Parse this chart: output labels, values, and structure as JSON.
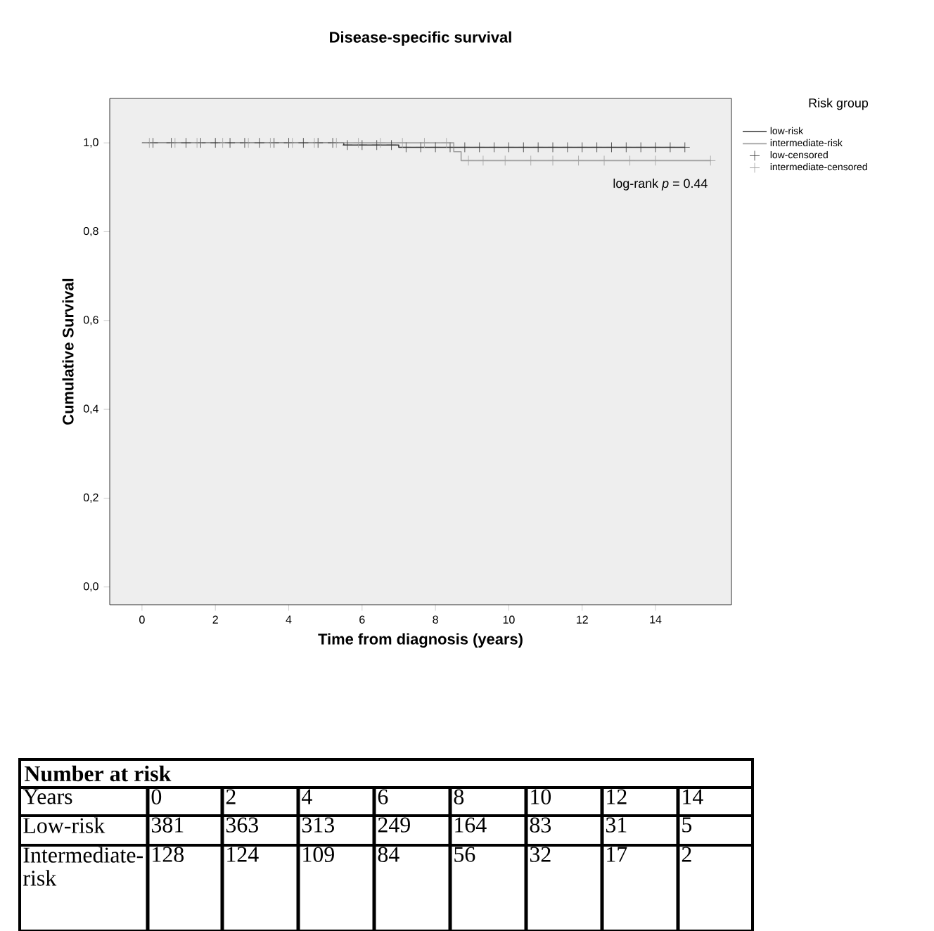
{
  "chart_data": {
    "type": "step",
    "title": "Disease-specific survival",
    "xlabel": "Time from diagnosis (years)",
    "ylabel": "Cumulative Survival",
    "legend_title": "Risk group",
    "legend": "top right",
    "annotations": [
      "log-rank *p* = 0.44",
      "Number at risk",
      "Years",
      "0",
      "2",
      "4",
      "6",
      "8",
      "10",
      "12",
      "14",
      "Low-risk",
      "381",
      "363",
      "313",
      "249",
      "164",
      "83",
      "31",
      "5",
      "Intermediate-risk",
      "128",
      "124",
      "109",
      "84",
      "56",
      "32",
      "17",
      "2"
    ],
    "xlim": [
      -0.88,
      16.07
    ],
    "ylim": [
      -0.04,
      1.1
    ],
    "xticks": [
      0,
      2,
      4,
      6,
      8,
      10,
      12,
      14
    ],
    "yticks": [
      {
        "value": 0.0,
        "label": "0,0"
      },
      {
        "value": 0.2,
        "label": "0,2"
      },
      {
        "value": 0.4,
        "label": "0,4"
      },
      {
        "value": 0.6,
        "label": "0,6"
      },
      {
        "value": 0.8,
        "label": "0,8"
      },
      {
        "value": 1.0,
        "label": "1,0"
      }
    ],
    "series": [
      {
        "name": "low-risk",
        "color": "#333333",
        "x": [
          0,
          5.5,
          7.0,
          14.8
        ],
        "values": [
          1.0,
          0.995,
          0.99,
          0.99
        ]
      },
      {
        "name": "intermediate-risk",
        "color": "#a0a0a0",
        "x": [
          0,
          8.5,
          8.7,
          15.5
        ],
        "values": [
          1.0,
          0.98,
          0.96,
          0.96
        ]
      },
      {
        "name": "low-censored",
        "type": "scatter",
        "marker": "cross",
        "color": "#333333",
        "x": [
          0.3,
          0.8,
          1.2,
          1.6,
          2.0,
          2.4,
          2.8,
          3.2,
          3.6,
          4.0,
          4.4,
          4.8,
          5.2,
          5.6,
          6.0,
          6.4,
          6.8,
          7.2,
          7.6,
          8.0,
          8.4,
          8.8,
          9.2,
          9.6,
          10.0,
          10.4,
          10.8,
          11.2,
          11.6,
          12.0,
          12.4,
          12.8,
          13.2,
          13.6,
          14.0,
          14.4,
          14.8
        ],
        "values": [
          1.0,
          1.0,
          1.0,
          1.0,
          1.0,
          1.0,
          1.0,
          1.0,
          1.0,
          1.0,
          1.0,
          1.0,
          1.0,
          0.995,
          0.995,
          0.995,
          0.995,
          0.99,
          0.99,
          0.99,
          0.99,
          0.99,
          0.99,
          0.99,
          0.99,
          0.99,
          0.99,
          0.99,
          0.99,
          0.99,
          0.99,
          0.99,
          0.99,
          0.99,
          0.99,
          0.99,
          0.99
        ]
      },
      {
        "name": "intermediate-censored",
        "type": "scatter",
        "marker": "cross",
        "color": "#a0a0a0",
        "x": [
          0.2,
          0.9,
          1.5,
          2.2,
          2.9,
          3.5,
          4.1,
          4.7,
          5.3,
          5.9,
          6.5,
          7.1,
          7.7,
          8.3,
          8.9,
          9.3,
          9.9,
          10.6,
          11.2,
          11.9,
          12.6,
          13.3,
          14.0,
          15.5
        ],
        "values": [
          1.0,
          1.0,
          1.0,
          1.0,
          1.0,
          1.0,
          1.0,
          1.0,
          1.0,
          1.0,
          1.0,
          1.0,
          1.0,
          1.0,
          0.96,
          0.96,
          0.96,
          0.96,
          0.96,
          0.96,
          0.96,
          0.96,
          0.96,
          0.96
        ]
      }
    ]
  }
}
